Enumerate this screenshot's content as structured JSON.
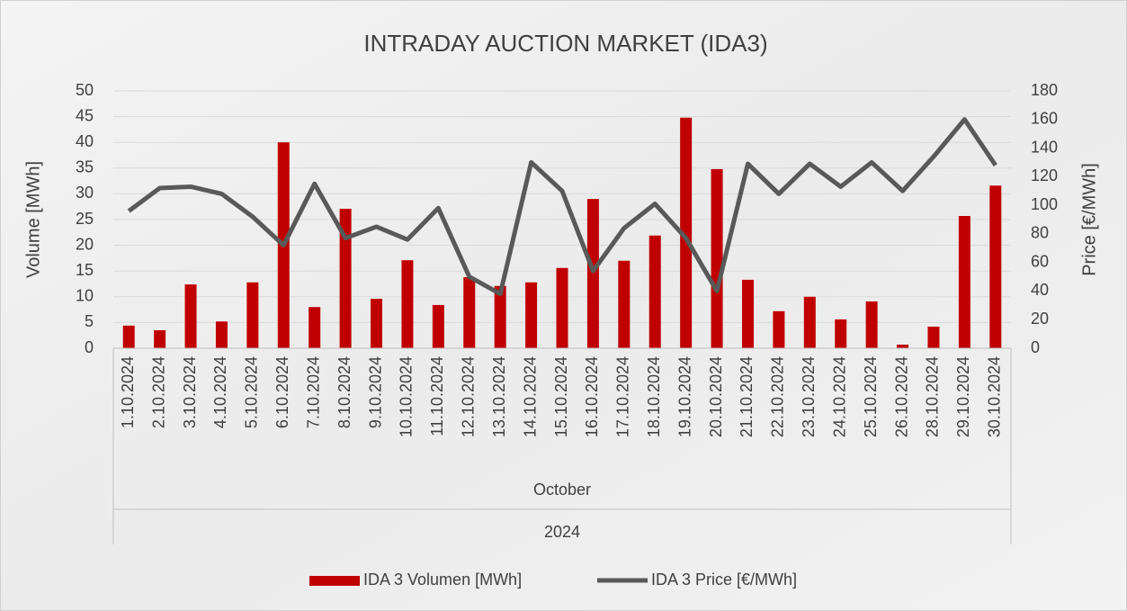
{
  "chart_data": {
    "type": "bar_line",
    "title": "INTRADAY AUCTION MARKET (IDA3)",
    "y_label": "Volume [MWh]",
    "y2_label": "Price [€/MWh]",
    "categories": [
      "1.10.2024",
      "2.10.2024",
      "3.10.2024",
      "4.10.2024",
      "5.10.2024",
      "6.10.2024",
      "7.10.2024",
      "8.10.2024",
      "9.10.2024",
      "10.10.2024",
      "11.10.2024",
      "12.10.2024",
      "13.10.2024",
      "14.10.2024",
      "15.10.2024",
      "16.10.2024",
      "17.10.2024",
      "18.10.2024",
      "19.10.2024",
      "20.10.2024",
      "21.10.2024",
      "22.10.2024",
      "23.10.2024",
      "24.10.2024",
      "25.10.2024",
      "26.10.2024",
      "28.10.2024",
      "29.10.2024",
      "30.10.2024"
    ],
    "category_group": "October",
    "category_supergroup": "2024",
    "series": [
      {
        "name": "IDA 3 Volumen [MWh]",
        "color": "#c00000",
        "type": "bar",
        "values": [
          4.4,
          3.5,
          12.4,
          5.2,
          12.8,
          40.0,
          8.0,
          27.1,
          9.6,
          17.1,
          8.4,
          13.8,
          12.1,
          12.8,
          15.6,
          29.0,
          17.0,
          21.9,
          44.8,
          34.8,
          13.3,
          7.2,
          10.0,
          5.6,
          9.1,
          0.7,
          4.2,
          25.7,
          31.6
        ]
      },
      {
        "name": "IDA 3 Price [€/MWh]",
        "color": "#595959",
        "type": "line",
        "axis": "y2",
        "values": [
          96,
          112,
          113,
          108,
          92,
          72,
          115,
          77,
          85,
          76,
          98,
          50,
          38,
          130,
          110,
          54,
          84,
          101,
          77,
          40,
          129,
          108,
          129,
          113,
          130,
          110,
          134,
          160,
          128
        ]
      }
    ],
    "ylim": [
      0,
      50
    ],
    "yticks": [
      0,
      5,
      10,
      15,
      20,
      25,
      30,
      35,
      40,
      45,
      50
    ],
    "y2lim": [
      0,
      180
    ],
    "y2ticks": [
      0,
      20,
      40,
      60,
      80,
      100,
      120,
      140,
      160,
      180
    ],
    "grid": true,
    "legend": "bottom"
  }
}
